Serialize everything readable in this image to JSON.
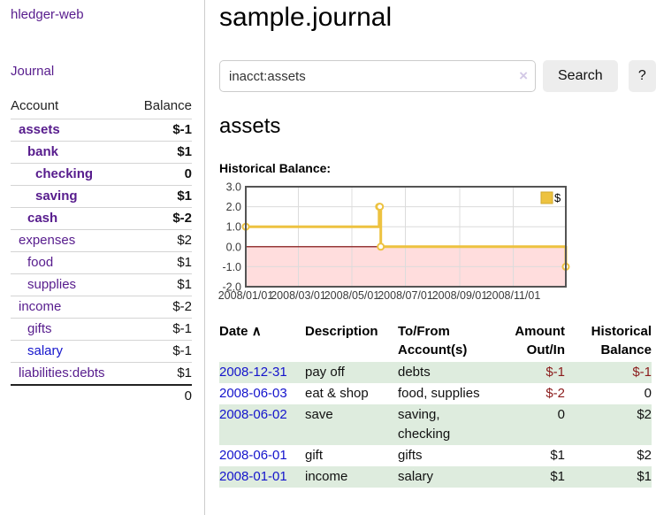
{
  "colors": {
    "purple_link": "#571c8d",
    "blue_link": "#1414cc",
    "negative_bold": "#941f2a",
    "negative_muted": "#be6e76",
    "negative_table": "#8b1c1c",
    "row_green": "#deecde",
    "chart_line": "#edc240"
  },
  "sidebar": {
    "brand": "hledger-web",
    "journal_link": "Journal",
    "accounts": {
      "col_account": "Account",
      "col_balance": "Balance",
      "rows": [
        {
          "account": "assets",
          "indent": 0,
          "bold": true,
          "balance": "$-1",
          "negative": true,
          "link_style": "purple"
        },
        {
          "account": "bank",
          "indent": 1,
          "bold": true,
          "balance": "$1",
          "negative": false,
          "link_style": "purple"
        },
        {
          "account": "checking",
          "indent": 2,
          "bold": true,
          "balance": "0",
          "negative": false,
          "link_style": "purple"
        },
        {
          "account": "saving",
          "indent": 2,
          "bold": true,
          "balance": "$1",
          "negative": false,
          "link_style": "purple"
        },
        {
          "account": "cash",
          "indent": 1,
          "bold": true,
          "balance": "$-2",
          "negative": true,
          "link_style": "purple"
        },
        {
          "account": "expenses",
          "indent": 0,
          "bold": false,
          "balance": "$2",
          "negative": false,
          "link_style": "purple"
        },
        {
          "account": "food",
          "indent": 1,
          "bold": false,
          "balance": "$1",
          "negative": false,
          "link_style": "purple"
        },
        {
          "account": "supplies",
          "indent": 1,
          "bold": false,
          "balance": "$1",
          "negative": false,
          "link_style": "purple"
        },
        {
          "account": "income",
          "indent": 0,
          "bold": false,
          "balance": "$-2",
          "negative": true,
          "link_style": "purple"
        },
        {
          "account": "gifts",
          "indent": 1,
          "bold": false,
          "balance": "$-1",
          "negative": true,
          "link_style": "purple"
        },
        {
          "account": "salary",
          "indent": 1,
          "bold": false,
          "balance": "$-1",
          "negative": true,
          "link_style": "blue"
        },
        {
          "account": "liabilities:debts",
          "indent": 0,
          "bold": false,
          "balance": "$1",
          "negative": false,
          "link_style": "purple"
        }
      ],
      "total": "0"
    }
  },
  "main": {
    "title": "sample.journal",
    "search": {
      "value": "inacct:assets",
      "clear_icon": "×",
      "search_button": "Search",
      "help_button": "?"
    },
    "account_heading": "assets",
    "chart_title": "Historical Balance:",
    "register": {
      "headers": {
        "date": "Date",
        "sort_icon": "∧",
        "description": "Description",
        "tofrom": "To/From Account(s)",
        "amount": "Amount Out/In",
        "balance": "Historical Balance"
      },
      "rows": [
        {
          "date": "2008-12-31",
          "description": "pay off",
          "accounts": "debts",
          "amount": "$-1",
          "amount_negative": true,
          "balance": "$-1",
          "balance_negative": true,
          "green": true
        },
        {
          "date": "2008-06-03",
          "description": "eat & shop",
          "accounts": "food, supplies",
          "amount": "$-2",
          "amount_negative": true,
          "balance": "0",
          "balance_negative": false,
          "green": false
        },
        {
          "date": "2008-06-02",
          "description": "save",
          "accounts": "saving, checking",
          "amount": "0",
          "amount_negative": false,
          "balance": "$2",
          "balance_negative": false,
          "green": true
        },
        {
          "date": "2008-06-01",
          "description": "gift",
          "accounts": "gifts",
          "amount": "$1",
          "amount_negative": false,
          "balance": "$2",
          "balance_negative": false,
          "green": false
        },
        {
          "date": "2008-01-01",
          "description": "income",
          "accounts": "salary",
          "amount": "$1",
          "amount_negative": false,
          "balance": "$1",
          "balance_negative": false,
          "green": true
        }
      ]
    }
  },
  "chart_data": {
    "type": "line",
    "title": "Historical Balance:",
    "step": true,
    "series": [
      {
        "name": "$",
        "color": "#edc240",
        "points": [
          [
            "2008-01-01",
            1
          ],
          [
            "2008-06-01",
            2
          ],
          [
            "2008-06-02",
            2
          ],
          [
            "2008-06-03",
            0
          ],
          [
            "2008-12-31",
            -1
          ]
        ]
      }
    ],
    "x_start": "2008-01-01",
    "x_end": "2008-12-31",
    "x_ticks": [
      {
        "date": "2008-01-01",
        "label": "2008/01/01"
      },
      {
        "date": "2008-03-01",
        "label": "2008/03/01"
      },
      {
        "date": "2008-05-01",
        "label": "2008/05/01"
      },
      {
        "date": "2008-07-01",
        "label": "2008/07/01"
      },
      {
        "date": "2008-09-01",
        "label": "2008/09/01"
      },
      {
        "date": "2008-11-01",
        "label": "2008/11/01"
      }
    ],
    "y_ticks": [
      3.0,
      2.0,
      1.0,
      0.0,
      -1.0,
      -2.0
    ],
    "ylim": [
      -2,
      3
    ],
    "grid": true,
    "legend": {
      "label": "$",
      "position": "top-right"
    },
    "negative_region_fill": "#ffdddd",
    "zero_line_color": "#7a0000",
    "border_color": "#545454"
  }
}
